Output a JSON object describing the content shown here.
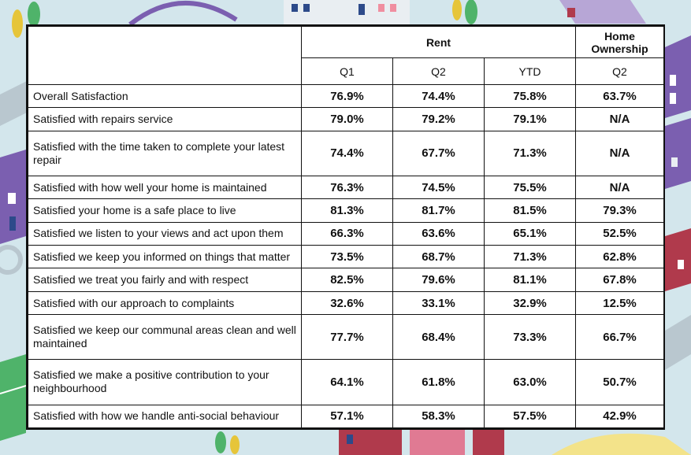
{
  "header": {
    "rent": "Rent",
    "home_ownership": "Home Ownership",
    "rent_cols": [
      "Q1",
      "Q2",
      "YTD"
    ],
    "ho_cols": [
      "Q2"
    ]
  },
  "rows": [
    {
      "label": "Overall Satisfaction",
      "q1": "76.9%",
      "q2": "74.4%",
      "ytd": "75.8%",
      "ho_q2": "63.7%"
    },
    {
      "label": "Satisfied with repairs service",
      "q1": "79.0%",
      "q2": "79.2%",
      "ytd": "79.1%",
      "ho_q2": "N/A"
    },
    {
      "label": "Satisfied with the time taken to complete your latest repair",
      "q1": "74.4%",
      "q2": "67.7%",
      "ytd": "71.3%",
      "ho_q2": "N/A"
    },
    {
      "label": "Satisfied with how well your home is maintained",
      "q1": "76.3%",
      "q2": "74.5%",
      "ytd": "75.5%",
      "ho_q2": "N/A"
    },
    {
      "label": "Satisfied your home is a safe place to live",
      "q1": "81.3%",
      "q2": "81.7%",
      "ytd": "81.5%",
      "ho_q2": "79.3%"
    },
    {
      "label": "Satisfied we listen to your views and act upon them",
      "q1": "66.3%",
      "q2": "63.6%",
      "ytd": "65.1%",
      "ho_q2": "52.5%"
    },
    {
      "label": "Satisfied we keep you informed on things that matter",
      "q1": "73.5%",
      "q2": "68.7%",
      "ytd": "71.3%",
      "ho_q2": "62.8%"
    },
    {
      "label": "Satisfied we treat you fairly and with respect",
      "q1": "82.5%",
      "q2": "79.6%",
      "ytd": "81.1%",
      "ho_q2": "67.8%"
    },
    {
      "label": "Satisfied with our approach to complaints",
      "q1": "32.6%",
      "q2": "33.1%",
      "ytd": "32.9%",
      "ho_q2": "12.5%"
    },
    {
      "label": "Satisfied we keep our communal areas clean and well maintained",
      "q1": "77.7%",
      "q2": "68.4%",
      "ytd": "73.3%",
      "ho_q2": "66.7%"
    },
    {
      "label": "Satisfied we make a positive contribution to your neighbourhood",
      "q1": "64.1%",
      "q2": "61.8%",
      "ytd": "63.0%",
      "ho_q2": "50.7%"
    },
    {
      "label": "Satisfied with how we handle anti-social behaviour",
      "q1": "57.1%",
      "q2": "58.3%",
      "ytd": "57.5%",
      "ho_q2": "42.9%"
    }
  ],
  "colors": {
    "background": "#cfe3ea",
    "building_purple": "#7b5fb0",
    "building_red": "#b03a4c",
    "park_green": "#4fb36a",
    "tree_yellow": "#e6c53a"
  }
}
